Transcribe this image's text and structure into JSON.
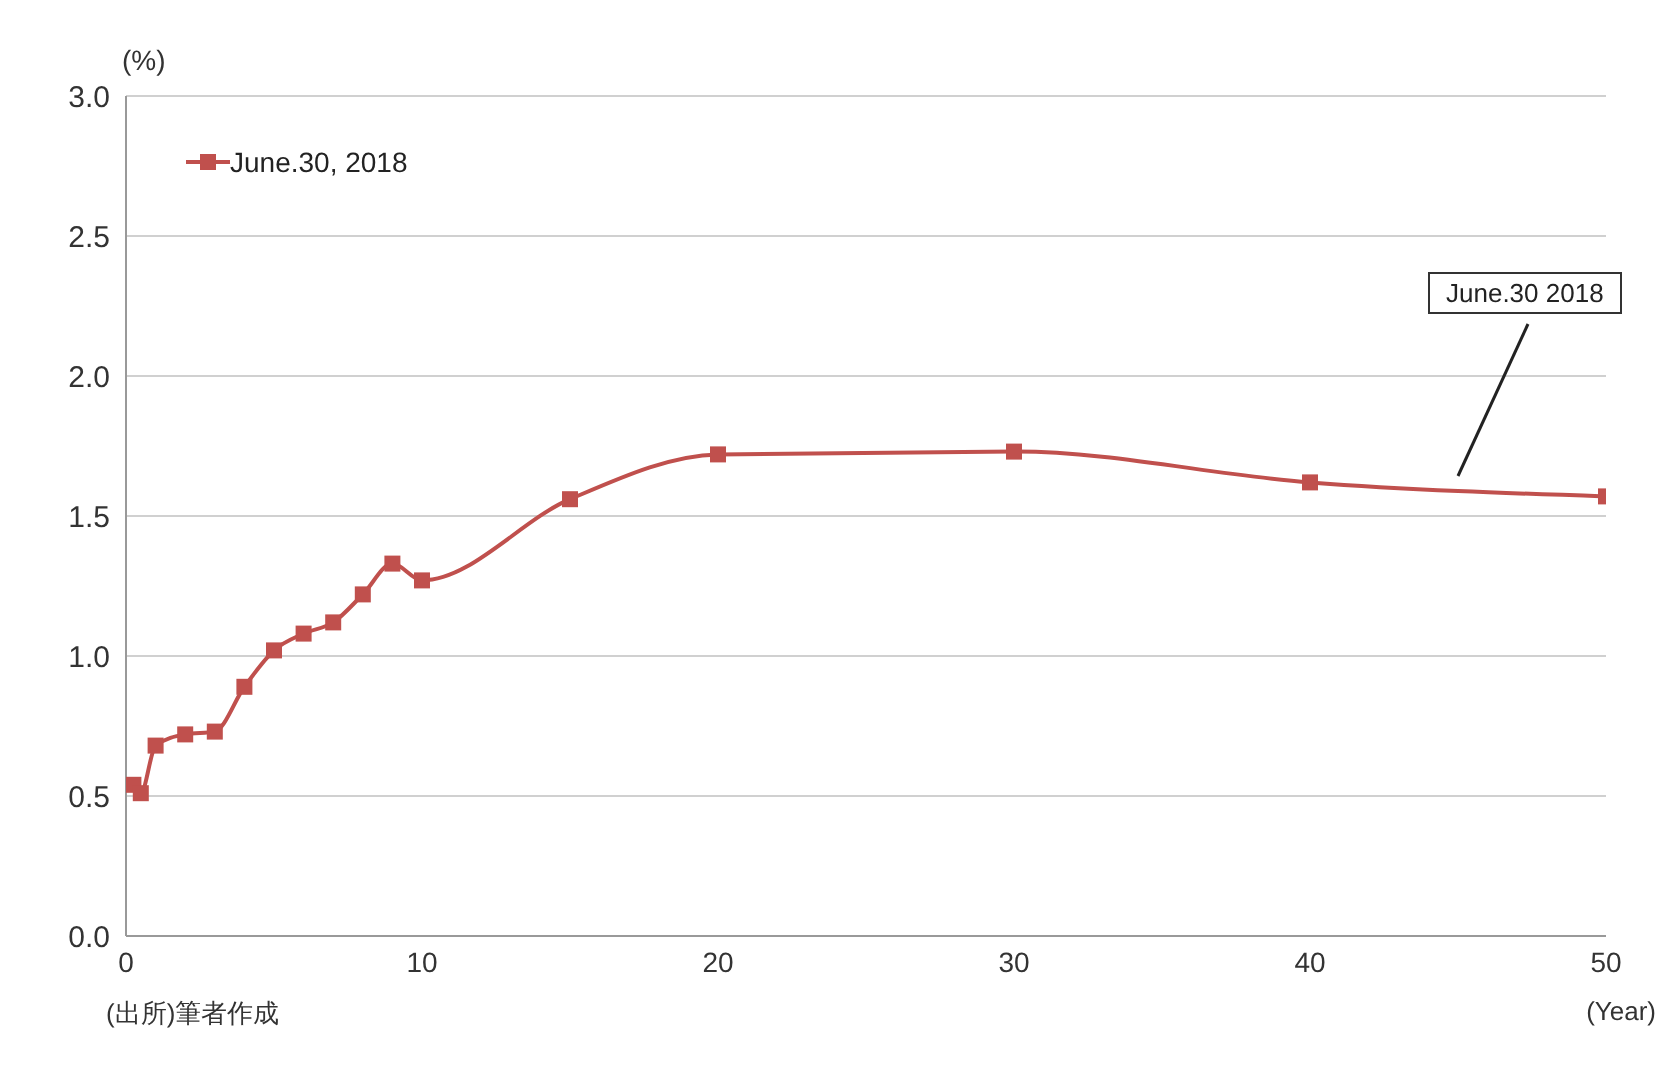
{
  "chart_data": {
    "type": "line",
    "xlabel": "(Year)",
    "ylabel": "(%)",
    "x": [
      0.25,
      0.5,
      1,
      2,
      3,
      4,
      5,
      6,
      7,
      8,
      9,
      10,
      15,
      20,
      30,
      40,
      50
    ],
    "series": [
      {
        "name": "June.30, 2018",
        "color": "#c0504d",
        "values": [
          0.54,
          0.51,
          0.68,
          0.72,
          0.73,
          0.89,
          1.02,
          1.08,
          1.12,
          1.22,
          1.33,
          1.27,
          1.56,
          1.72,
          1.73,
          1.62,
          1.57
        ]
      }
    ],
    "xlim": [
      0,
      50
    ],
    "xticks": [
      0,
      10,
      20,
      30,
      40,
      50
    ],
    "ylim": [
      0,
      3
    ],
    "yticks": [
      {
        "value": 0,
        "label": "0.0"
      },
      {
        "value": 0.5,
        "label": "0.5"
      },
      {
        "value": 1,
        "label": "1.0"
      },
      {
        "value": 1.5,
        "label": "1.5"
      },
      {
        "value": 2,
        "label": "2.0"
      },
      {
        "value": 2.5,
        "label": "2.5"
      },
      {
        "value": 3,
        "label": "3.0"
      }
    ],
    "grid": "y",
    "legend": "top left",
    "marker": "square",
    "line_style": "solid",
    "annotations": [
      "June.30 2018",
      "(出所)筆者作成"
    ]
  }
}
